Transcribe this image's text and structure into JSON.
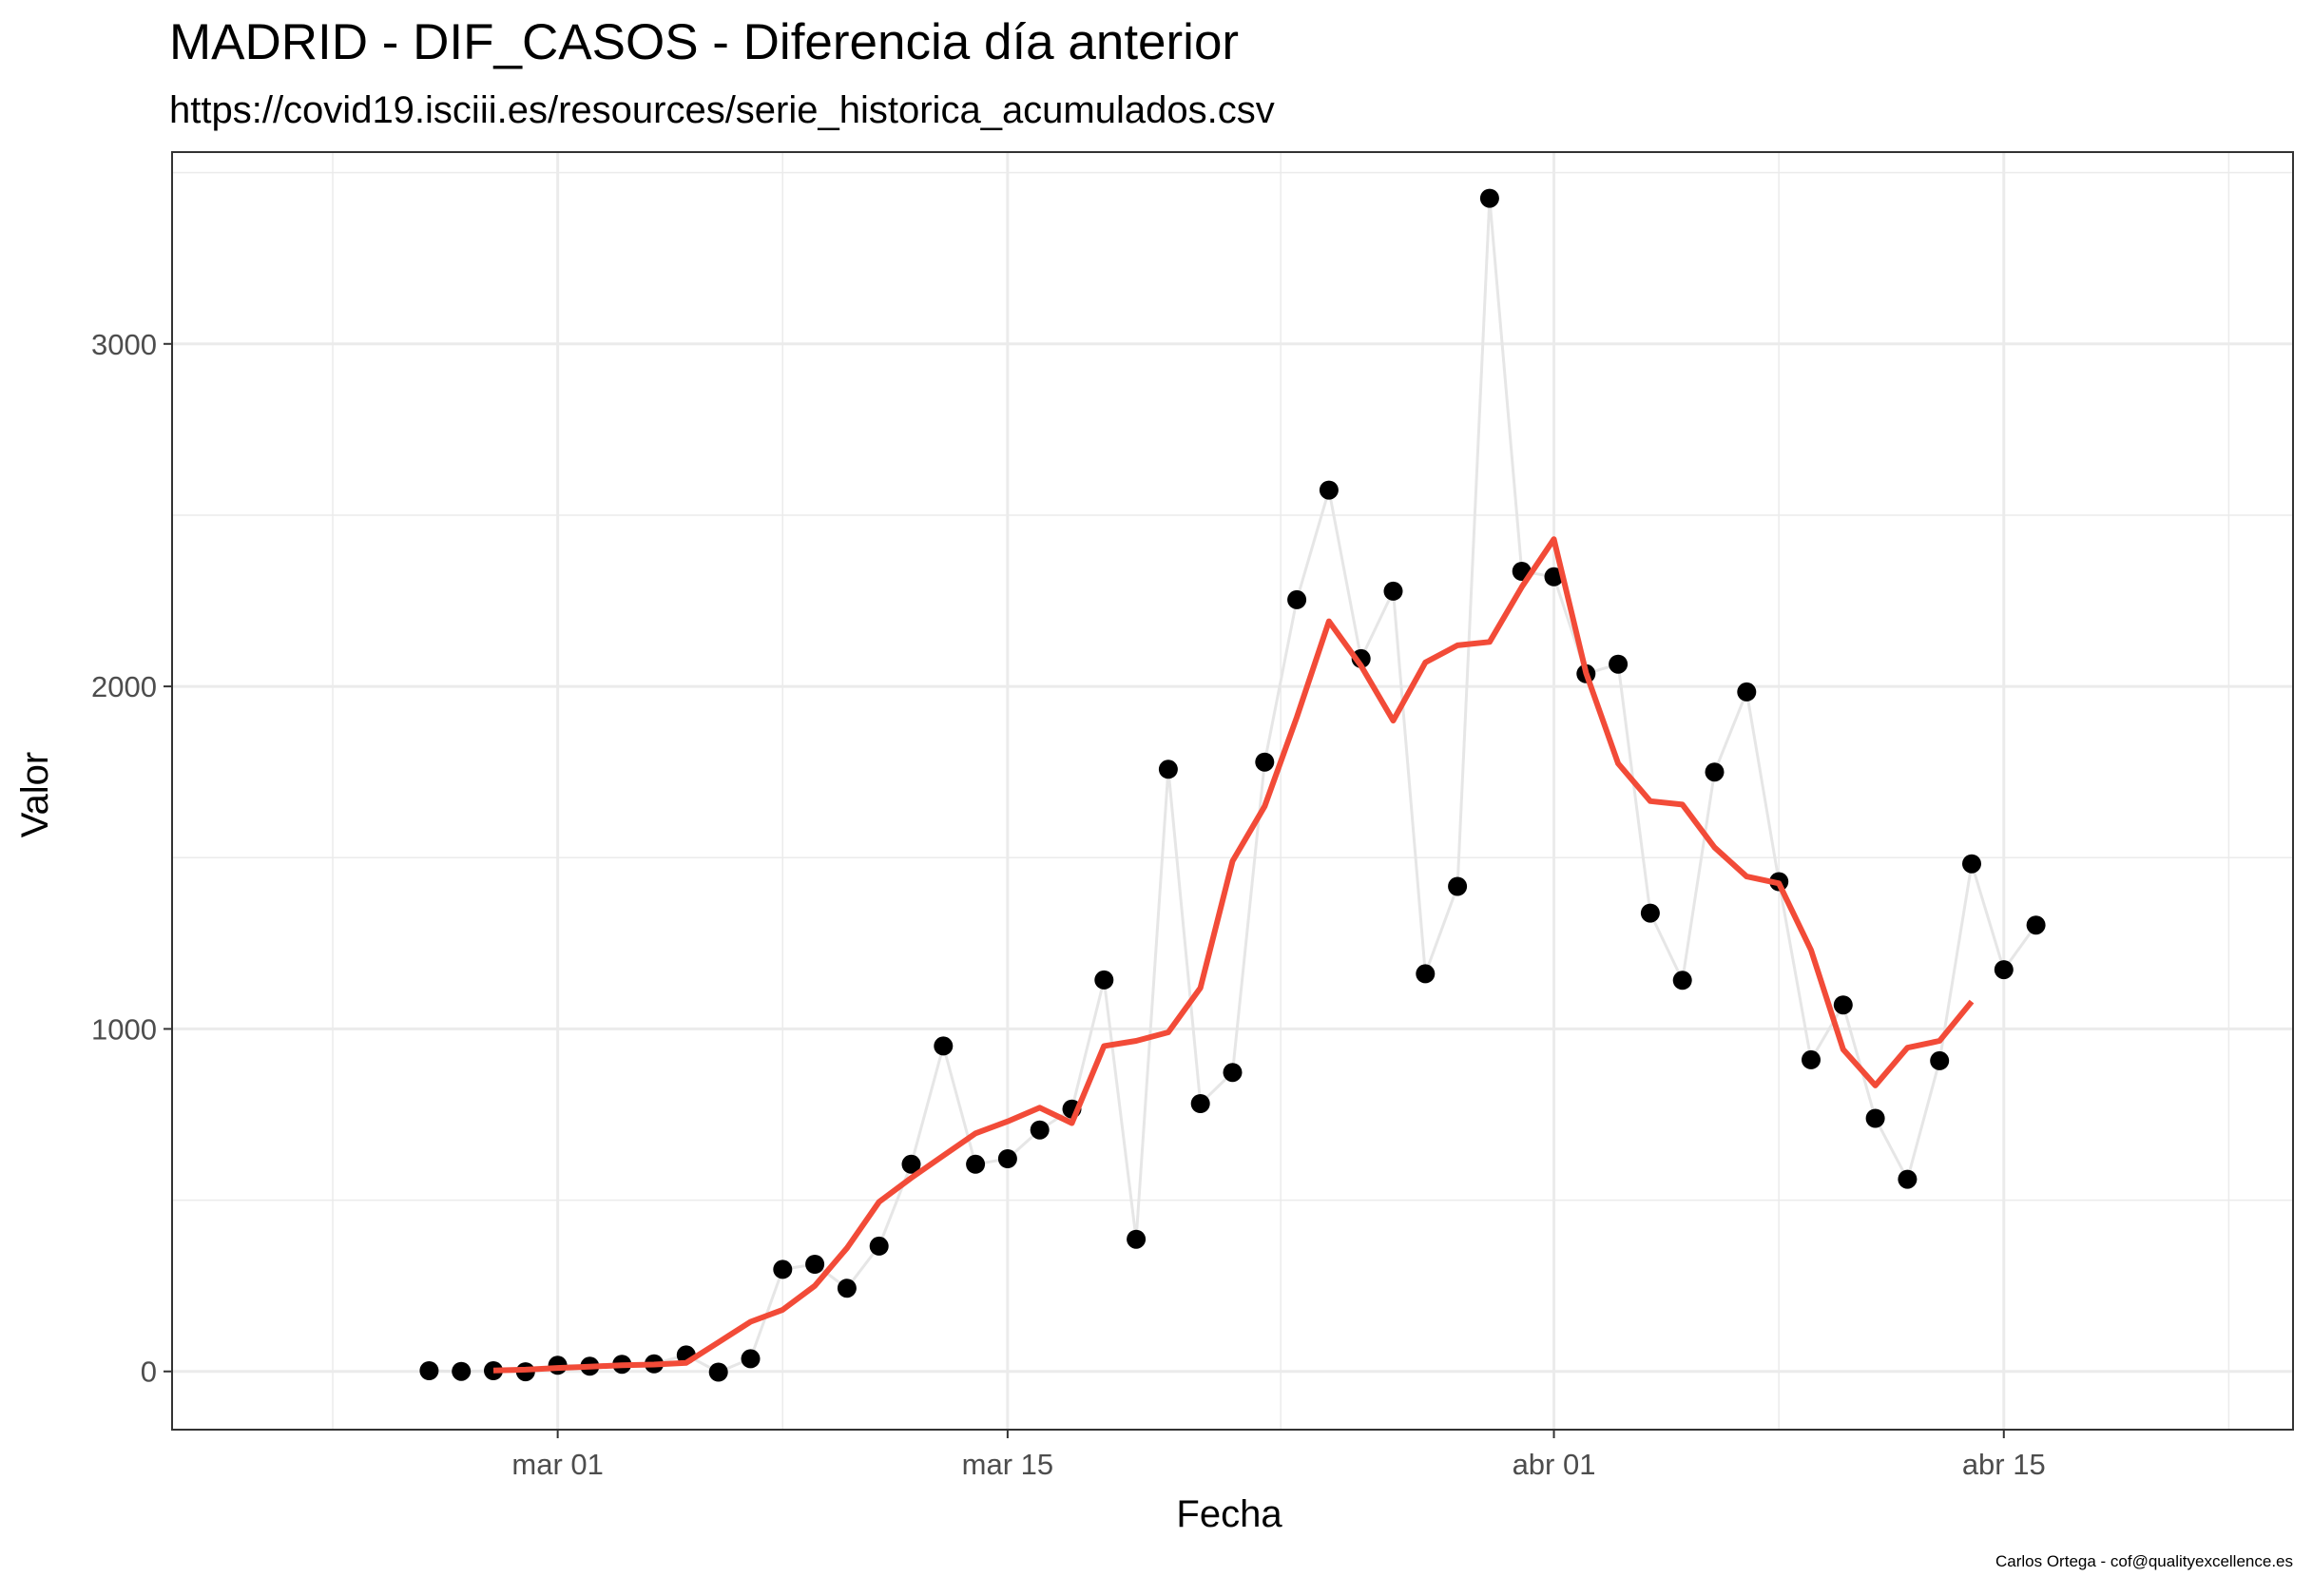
{
  "chart_data": {
    "type": "line",
    "title": "MADRID - DIF_CASOS - Diferencia día anterior",
    "subtitle": "https://covid19.isciii.es/resources/serie_historica_acumulados.csv",
    "xlabel": "Fecha",
    "ylabel": "Valor",
    "caption": "Carlos Ortega - cof@qualityexcellence.es",
    "xlim": [
      "2020-02-18",
      "2020-04-24"
    ],
    "ylim": [
      -170,
      3560
    ],
    "x_ticks": [
      {
        "date": "2020-03-01",
        "label": "mar 01"
      },
      {
        "date": "2020-03-15",
        "label": "mar 15"
      },
      {
        "date": "2020-04-01",
        "label": "abr 01"
      },
      {
        "date": "2020-04-15",
        "label": "abr 15"
      }
    ],
    "y_ticks": [
      0,
      1000,
      2000,
      3000
    ],
    "grid": true,
    "series": [
      {
        "style": "points-with-line",
        "point_color": "#000000",
        "line_color": "#e6e6e6",
        "x": [
          "2020-02-26",
          "2020-02-27",
          "2020-02-28",
          "2020-02-29",
          "2020-03-01",
          "2020-03-02",
          "2020-03-03",
          "2020-03-04",
          "2020-03-05",
          "2020-03-06",
          "2020-03-07",
          "2020-03-08",
          "2020-03-09",
          "2020-03-10",
          "2020-03-11",
          "2020-03-12",
          "2020-03-13",
          "2020-03-14",
          "2020-03-15",
          "2020-03-16",
          "2020-03-17",
          "2020-03-18",
          "2020-03-19",
          "2020-03-20",
          "2020-03-21",
          "2020-03-22",
          "2020-03-23",
          "2020-03-24",
          "2020-03-25",
          "2020-03-26",
          "2020-03-27",
          "2020-03-28",
          "2020-03-29",
          "2020-03-30",
          "2020-03-31",
          "2020-04-01",
          "2020-04-02",
          "2020-04-03",
          "2020-04-04",
          "2020-04-05",
          "2020-04-06",
          "2020-04-07",
          "2020-04-08",
          "2020-04-09",
          "2020-04-10",
          "2020-04-11",
          "2020-04-12",
          "2020-04-13",
          "2020-04-14",
          "2020-04-15",
          "2020-04-16"
        ],
        "y": [
          2,
          0,
          2,
          -1,
          18,
          15,
          21,
          22,
          48,
          -2,
          37,
          298,
          313,
          243,
          366,
          605,
          950,
          605,
          621,
          705,
          766,
          1143,
          386,
          1758,
          782,
          873,
          1779,
          2253,
          2573,
          2081,
          2278,
          1161,
          1416,
          3425,
          2336,
          2320,
          2037,
          2065,
          1338,
          1142,
          1750,
          1984,
          1430,
          910,
          1070,
          739,
          561,
          907,
          1482,
          1173,
          1303
        ]
      },
      {
        "style": "line",
        "line_color": "#f24b38",
        "x": [
          "2020-02-28",
          "2020-02-29",
          "2020-03-01",
          "2020-03-02",
          "2020-03-03",
          "2020-03-04",
          "2020-03-05",
          "2020-03-06",
          "2020-03-07",
          "2020-03-08",
          "2020-03-09",
          "2020-03-10",
          "2020-03-11",
          "2020-03-12",
          "2020-03-13",
          "2020-03-14",
          "2020-03-15",
          "2020-03-16",
          "2020-03-17",
          "2020-03-18",
          "2020-03-19",
          "2020-03-20",
          "2020-03-21",
          "2020-03-22",
          "2020-03-23",
          "2020-03-24",
          "2020-03-25",
          "2020-03-26",
          "2020-03-27",
          "2020-03-28",
          "2020-03-29",
          "2020-03-30",
          "2020-03-31",
          "2020-04-01",
          "2020-04-02",
          "2020-04-03",
          "2020-04-04",
          "2020-04-05",
          "2020-04-06",
          "2020-04-07",
          "2020-04-08",
          "2020-04-09",
          "2020-04-10",
          "2020-04-11",
          "2020-04-12",
          "2020-04-13",
          "2020-04-14"
        ],
        "y": [
          3,
          5,
          10,
          14,
          18,
          20,
          25,
          85,
          145,
          180,
          250,
          360,
          495,
          565,
          630,
          695,
          730,
          770,
          725,
          950,
          965,
          990,
          1120,
          1490,
          1650,
          1910,
          2190,
          2060,
          1900,
          2070,
          2120,
          2130,
          2290,
          2430,
          2040,
          1775,
          1665,
          1655,
          1530,
          1445,
          1425,
          1230,
          940,
          835,
          945,
          965,
          1080
        ]
      }
    ]
  }
}
